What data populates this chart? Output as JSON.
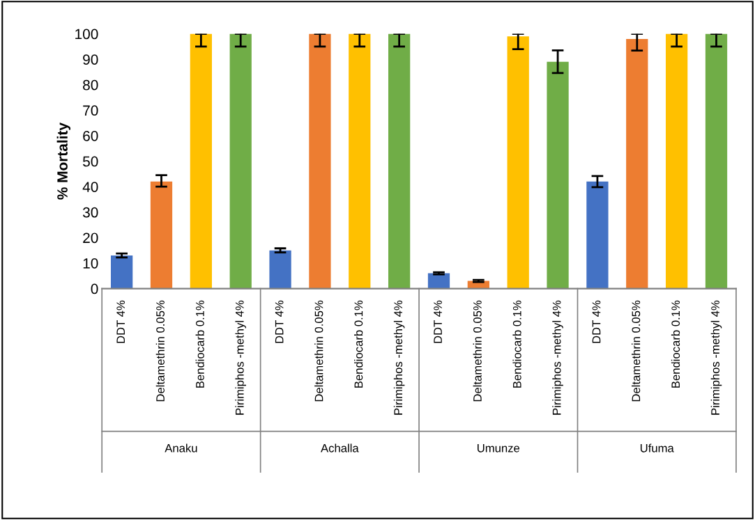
{
  "chart_data": {
    "type": "bar",
    "ylabel": "% Mortality",
    "categories": [
      "DDT 4%",
      "Deltamethrin 0.05%",
      "Bendiocarb 0.1%",
      "Pirimiphos -methyl 4%",
      "DDT 4%",
      "Deltamethrin 0.05%",
      "Bendiocarb 0.1%",
      "Pirimiphos -methyl 4%",
      "DDT 4%",
      "Deltamethrin 0.05%",
      "Bendiocarb 0.1%",
      "Pirimiphos -methyl 4%",
      "DDT 4%",
      "Deltamethrin 0.05%",
      "Bendiocarb 0.1%",
      "Pirimiphos -methyl 4%"
    ],
    "values": [
      13,
      42,
      100,
      100,
      15,
      100,
      100,
      100,
      6,
      3,
      99,
      89,
      42,
      98,
      100,
      100
    ],
    "colors": [
      "#4472c4",
      "#ed7d31",
      "#ffc000",
      "#70ad47",
      "#4472c4",
      "#ed7d31",
      "#ffc000",
      "#70ad47",
      "#4472c4",
      "#ed7d31",
      "#ffc000",
      "#70ad47",
      "#4472c4",
      "#ed7d31",
      "#ffc000",
      "#70ad47"
    ],
    "errors": [
      [
        12.2,
        13.8
      ],
      [
        40,
        44.5
      ],
      [
        95,
        100
      ],
      [
        95,
        100
      ],
      [
        14.2,
        15.8
      ],
      [
        95,
        100
      ],
      [
        95,
        100
      ],
      [
        95,
        100
      ],
      [
        5.6,
        6.4
      ],
      [
        2.6,
        3.4
      ],
      [
        94,
        100
      ],
      [
        84.6,
        93.5
      ],
      [
        39.8,
        44.2
      ],
      [
        93.4,
        100
      ],
      [
        95,
        100
      ],
      [
        95,
        100
      ]
    ],
    "annotations": [
      "Anaku",
      "Achalla",
      "Umunze",
      "Ufuma"
    ],
    "ylim": [
      0,
      100
    ],
    "yticks": [
      0,
      10,
      20,
      30,
      40,
      50,
      60,
      70,
      80,
      90,
      100
    ],
    "grid": false,
    "legend": false
  }
}
